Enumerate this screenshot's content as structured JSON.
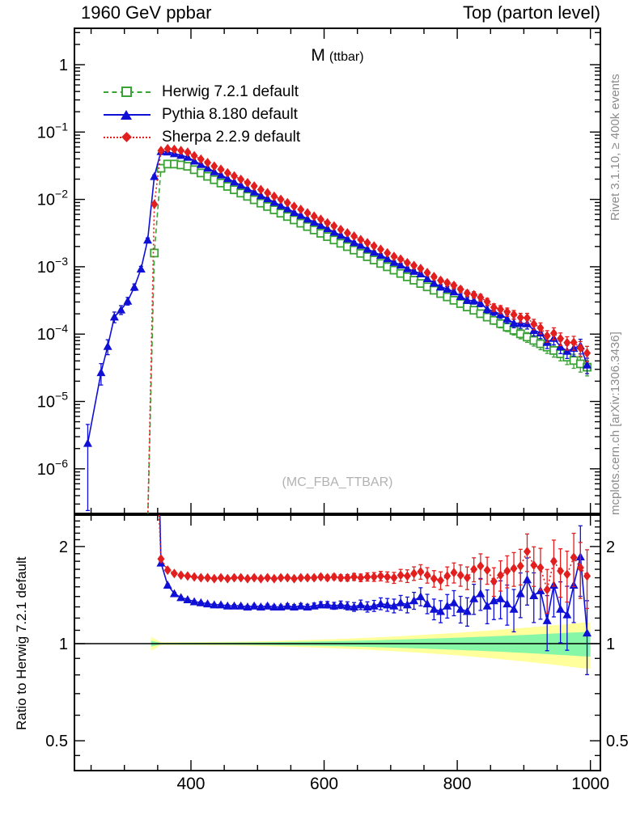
{
  "header": {
    "left": "1960 GeV ppbar",
    "right": "Top (parton level)"
  },
  "side": {
    "rivet": "Rivet 3.1.10, ≥ 400k events",
    "mcplots": "mcplots.cern.ch [arXiv:1306.3436]"
  },
  "main_panel": {
    "title_main": "M",
    "title_sub": "(ttbar)",
    "watermark": "(MC_FBA_TTBAR)"
  },
  "ratio_panel": {
    "ylabel": "Ratio to Herwig 7.2.1 default"
  },
  "chart_data": {
    "type": "line",
    "title": "M (ttbar)",
    "x_axis": {
      "range": [
        225,
        1015
      ],
      "major_ticks": [
        400,
        600,
        800,
        1000
      ],
      "labels": [
        "400",
        "600",
        "800",
        "1000"
      ],
      "minor_step": 50
    },
    "y_axis_main": {
      "scale": "log",
      "top_value": 3.5,
      "bottom_value": 2.15e-07,
      "decade_exponents": [
        0,
        -1,
        -2,
        -3,
        -4,
        -5,
        -6
      ]
    },
    "y_axis_ratio": {
      "scale": "log",
      "range": [
        0.404,
        2.5
      ],
      "major_ticks": [
        2,
        1,
        0.5
      ],
      "labels": [
        "2",
        "1",
        "0.5"
      ],
      "minor_ticks": [
        2.4,
        2.3,
        2.2,
        2.1,
        1.9,
        1.8,
        1.7,
        1.6,
        1.5,
        1.4,
        1.3,
        1.2,
        1.1,
        0.9,
        0.8,
        0.7,
        0.6,
        0.45
      ]
    },
    "bins": {
      "start": 345,
      "step": 10,
      "count": 66
    },
    "series": [
      {
        "name": "herwig",
        "label": "Herwig 7.2.1 default",
        "color": "#3aa335",
        "line": "dashed",
        "marker": "open-square",
        "y": [
          0.0016,
          0.029,
          0.0335,
          0.0335,
          0.0325,
          0.031,
          0.0276,
          0.0247,
          0.022,
          0.0196,
          0.0175,
          0.0156,
          0.0139,
          0.0124,
          0.0111,
          0.00987,
          0.0088,
          0.00785,
          0.007,
          0.00624,
          0.00557,
          0.00496,
          0.00443,
          0.00395,
          0.00352,
          0.00314,
          0.0028,
          0.0025,
          0.00223,
          0.00199,
          0.00177,
          0.00158,
          0.00141,
          0.00126,
          0.00112,
          0.000999,
          0.000891,
          0.000795,
          0.000709,
          0.000632,
          0.000564,
          0.000503,
          0.000448,
          0.0004,
          0.000357,
          0.000318,
          0.000284,
          0.000253,
          0.000226,
          0.000201,
          0.000179,
          0.00016,
          0.000143,
          0.000127,
          0.000114,
          0.000101,
          9.04e-05,
          8.06e-05,
          7.19e-05,
          6.41e-05,
          5.72e-05,
          5.1e-05,
          4.55e-05,
          4.06e-05,
          3.62e-05,
          3.23e-05
        ],
        "prepoint": [
          335,
          1.5e-07
        ]
      },
      {
        "name": "pythia",
        "label": "Pythia 8.180 default",
        "color": "#0f0fd6",
        "line": "solid",
        "marker": "triangle",
        "ratio_to_herwig": [
          13.75,
          1.78,
          1.52,
          1.43,
          1.39,
          1.37,
          1.35,
          1.34,
          1.33,
          1.32,
          1.32,
          1.31,
          1.31,
          1.31,
          1.3,
          1.31,
          1.3,
          1.31,
          1.3,
          1.3,
          1.31,
          1.3,
          1.31,
          1.3,
          1.31,
          1.32,
          1.32,
          1.31,
          1.32,
          1.31,
          1.3,
          1.32,
          1.3,
          1.31,
          1.33,
          1.32,
          1.31,
          1.34,
          1.32,
          1.36,
          1.4,
          1.33,
          1.28,
          1.26,
          1.31,
          1.34,
          1.28,
          1.26,
          1.38,
          1.43,
          1.31,
          1.36,
          1.38,
          1.33,
          1.28,
          1.43,
          1.58,
          1.41,
          1.46,
          1.18,
          1.52,
          1.28,
          1.23,
          1.52,
          1.86,
          1.08
        ],
        "tail_x": [
          245,
          265,
          275,
          285,
          295,
          305,
          315,
          325,
          335
        ],
        "tail_y": [
          2.4e-06,
          2.7e-05,
          6.6e-05,
          0.00018,
          0.00023,
          0.00031,
          0.0005,
          0.00093,
          0.0025
        ],
        "tail_rel_err": [
          0.9,
          0.35,
          0.25,
          0.18,
          0.15,
          0.13,
          0.11,
          0.09,
          0.07
        ]
      },
      {
        "name": "sherpa",
        "label": "Sherpa 2.2.9 default",
        "color": "#e31e1e",
        "line": "dotted",
        "marker": "diamond",
        "ratio_to_herwig": [
          5.3,
          1.83,
          1.69,
          1.65,
          1.63,
          1.62,
          1.61,
          1.6,
          1.6,
          1.59,
          1.6,
          1.59,
          1.6,
          1.6,
          1.59,
          1.6,
          1.59,
          1.6,
          1.59,
          1.6,
          1.6,
          1.59,
          1.6,
          1.6,
          1.6,
          1.61,
          1.6,
          1.61,
          1.6,
          1.6,
          1.61,
          1.6,
          1.61,
          1.61,
          1.62,
          1.61,
          1.6,
          1.63,
          1.62,
          1.65,
          1.67,
          1.63,
          1.59,
          1.57,
          1.62,
          1.66,
          1.63,
          1.6,
          1.7,
          1.74,
          1.69,
          1.56,
          1.63,
          1.68,
          1.71,
          1.74,
          1.93,
          1.75,
          1.72,
          1.47,
          1.8,
          1.68,
          1.64,
          1.85,
          1.72,
          1.62
        ],
        "prepoint": [
          335,
          1.5e-07
        ]
      }
    ],
    "rel_err_model": {
      "base": 0.008,
      "scale": 0.25,
      "x0": 355,
      "span": 640,
      "power": 3,
      "threshold_bin": 0.05
    },
    "band": {
      "center": 1.0,
      "yellow_color": "#ffff9c",
      "green_color": "#86f7a7",
      "yellow_base": 0.01,
      "yellow_max": 0.155,
      "green_base": 0.006,
      "green_max": 0.082,
      "grow_power": 2.2,
      "first_bin_extra_yellow": 0.04,
      "first_bin_extra_green": 0.015
    },
    "legend_position": "top-left"
  }
}
